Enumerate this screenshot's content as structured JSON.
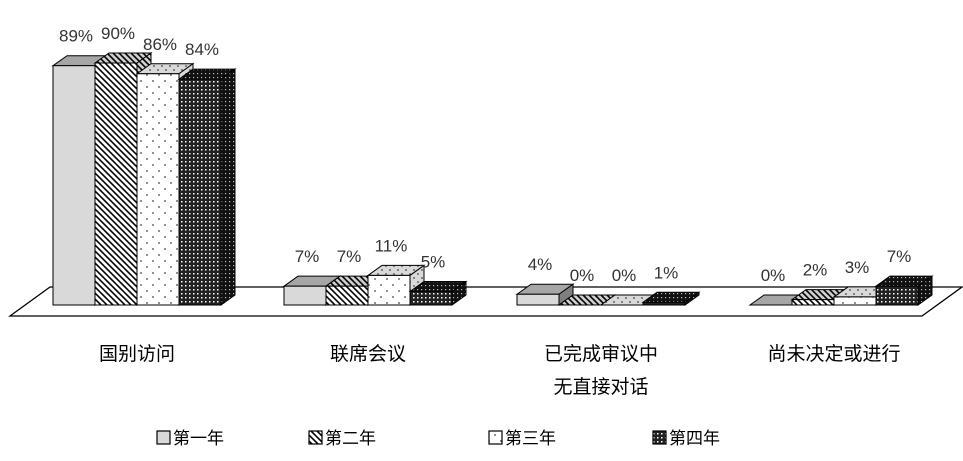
{
  "chart_data": {
    "type": "bar",
    "categories": [
      [
        "国别访问"
      ],
      [
        "联席会议"
      ],
      [
        "已完成审议中",
        "无直接对话"
      ],
      [
        "尚未决定或进行"
      ]
    ],
    "series": [
      {
        "name": "第一年",
        "values": [
          89,
          7,
          4,
          0
        ],
        "labels": [
          "89%",
          "7%",
          "4%",
          "0%"
        ],
        "pattern": "plain"
      },
      {
        "name": "第二年",
        "values": [
          90,
          7,
          0,
          2
        ],
        "labels": [
          "90%",
          "7%",
          "0%",
          "2%"
        ],
        "pattern": "diagonal"
      },
      {
        "name": "第三年",
        "values": [
          86,
          11,
          0,
          3
        ],
        "labels": [
          "86%",
          "11%",
          "0%",
          "3%"
        ],
        "pattern": "dots"
      },
      {
        "name": "第四年",
        "values": [
          84,
          5,
          1,
          7
        ],
        "labels": [
          "84%",
          "5%",
          "1%",
          "7%"
        ],
        "pattern": "dense"
      }
    ],
    "ylim": [
      0,
      100
    ],
    "grid": false,
    "legend_position": "bottom",
    "colors": {
      "front": "#d9d9d9",
      "top": "#a6a6a6",
      "side": "#7f7f7f",
      "outline": "#000000"
    }
  }
}
